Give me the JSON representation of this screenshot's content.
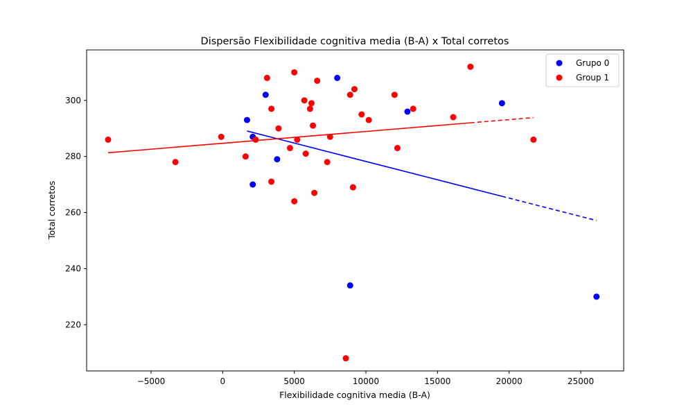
{
  "chart_data": {
    "type": "scatter",
    "title": "Dispersão Flexibilidade cognitiva media (B-A) x Total corretos",
    "xlabel": "Flexibilidade cognitiva media (B-A)",
    "ylabel": "Total corretos",
    "xlim": [
      -9500,
      28000
    ],
    "ylim": [
      203.5,
      318
    ],
    "xticks": [
      -5000,
      0,
      5000,
      10000,
      15000,
      20000,
      25000
    ],
    "xtick_labels": [
      "−5000",
      "0",
      "5000",
      "10000",
      "15000",
      "20000",
      "25000"
    ],
    "yticks": [
      220,
      240,
      260,
      280,
      300
    ],
    "ytick_labels": [
      "220",
      "240",
      "260",
      "280",
      "300"
    ],
    "grid": false,
    "legend_position": "top-right",
    "series": [
      {
        "name": "Grupo 0",
        "color": "#0000ff",
        "points": [
          [
            1700,
            293
          ],
          [
            2100,
            287
          ],
          [
            2100,
            270
          ],
          [
            3000,
            302
          ],
          [
            3800,
            279
          ],
          [
            8000,
            308
          ],
          [
            8900,
            234
          ],
          [
            12900,
            296
          ],
          [
            19500,
            299
          ],
          [
            26100,
            230
          ]
        ],
        "fit": {
          "slope": -0.001308,
          "intercept": 291.3,
          "solid_range": [
            1700,
            19500
          ],
          "dashed_range": [
            19500,
            26100
          ]
        }
      },
      {
        "name": "Group 1",
        "color": "#ff0000",
        "points": [
          [
            -8000,
            286
          ],
          [
            -3300,
            278
          ],
          [
            -100,
            287
          ],
          [
            1600,
            280
          ],
          [
            2300,
            286
          ],
          [
            3100,
            308
          ],
          [
            3400,
            297
          ],
          [
            3400,
            271
          ],
          [
            3900,
            290
          ],
          [
            4700,
            283
          ],
          [
            5000,
            264
          ],
          [
            5000,
            310
          ],
          [
            5200,
            286
          ],
          [
            5700,
            300
          ],
          [
            5800,
            281
          ],
          [
            6100,
            297
          ],
          [
            6200,
            299
          ],
          [
            6300,
            291
          ],
          [
            6400,
            267
          ],
          [
            6600,
            307
          ],
          [
            7300,
            278
          ],
          [
            7500,
            287
          ],
          [
            8600,
            208
          ],
          [
            8900,
            302
          ],
          [
            9100,
            269
          ],
          [
            9200,
            304
          ],
          [
            9700,
            295
          ],
          [
            10200,
            293
          ],
          [
            12000,
            302
          ],
          [
            12200,
            283
          ],
          [
            13300,
            297
          ],
          [
            16100,
            294
          ],
          [
            17300,
            312
          ],
          [
            21700,
            286
          ]
        ],
        "fit": {
          "slope": 0.000422,
          "intercept": 284.7,
          "solid_range": [
            -8000,
            17300
          ],
          "dashed_range": [
            17300,
            21700
          ]
        }
      }
    ]
  }
}
